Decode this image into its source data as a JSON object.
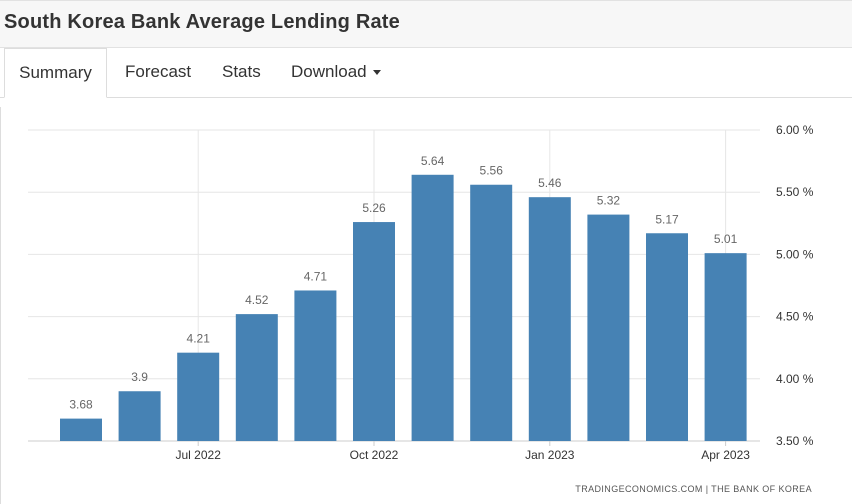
{
  "header": {
    "title": "South Korea Bank Average Lending Rate"
  },
  "tabs": [
    {
      "label": "Summary",
      "active": true
    },
    {
      "label": "Forecast"
    },
    {
      "label": "Stats"
    },
    {
      "label": "Download",
      "dropdown": true
    }
  ],
  "source_text": "TRADINGECONOMICS.COM | THE BANK OF KOREA",
  "colors": {
    "bar": "#4682b4",
    "grid": "#e6e6e6",
    "header_bg": "#f7f7f7"
  },
  "chart_data": {
    "type": "bar",
    "categories": [
      "May 2022",
      "Jun 2022",
      "Jul 2022",
      "Aug 2022",
      "Sep 2022",
      "Oct 2022",
      "Nov 2022",
      "Dec 2022",
      "Jan 2023",
      "Feb 2023",
      "Mar 2023",
      "Apr 2023"
    ],
    "values": [
      3.68,
      3.9,
      4.21,
      4.52,
      4.71,
      5.26,
      5.64,
      5.56,
      5.46,
      5.32,
      5.17,
      5.01
    ],
    "value_labels": [
      "3.68",
      "3.9",
      "4.21",
      "4.52",
      "4.71",
      "5.26",
      "5.64",
      "5.56",
      "5.46",
      "5.32",
      "5.17",
      "5.01"
    ],
    "x_tick_labels": [
      {
        "category": "Jul 2022",
        "label": "Jul 2022"
      },
      {
        "category": "Oct 2022",
        "label": "Oct 2022"
      },
      {
        "category": "Jan 2023",
        "label": "Jan 2023"
      },
      {
        "category": "Apr 2023",
        "label": "Apr 2023"
      }
    ],
    "y_ticks": [
      {
        "value": 3.5,
        "label": "3.50 %"
      },
      {
        "value": 4.0,
        "label": "4.00 %"
      },
      {
        "value": 4.5,
        "label": "4.50 %"
      },
      {
        "value": 5.0,
        "label": "5.00 %"
      },
      {
        "value": 5.5,
        "label": "5.50 %"
      },
      {
        "value": 6.0,
        "label": "6.00 %"
      }
    ],
    "ylim": [
      3.5,
      6.0
    ],
    "y_axis_position": "right",
    "grid": true,
    "title": "",
    "xlabel": "",
    "ylabel": ""
  }
}
